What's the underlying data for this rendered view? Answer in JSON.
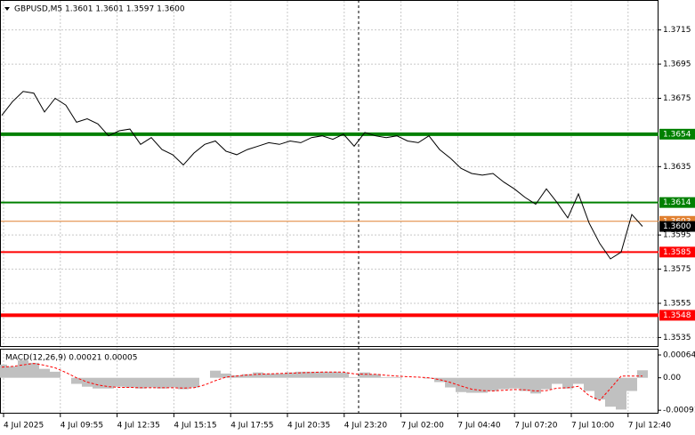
{
  "chart_data": [
    {
      "type": "line",
      "title": "GBPUSD,M5  1.3601 1.3601 1.3597 1.3600",
      "color": "#000000",
      "values": [
        1.3665,
        1.3673,
        1.3679,
        1.3678,
        1.3667,
        1.3675,
        1.3671,
        1.3661,
        1.3663,
        1.366,
        1.3653,
        1.3656,
        1.3657,
        1.3648,
        1.3652,
        1.3645,
        1.3642,
        1.3636,
        1.3643,
        1.3648,
        1.365,
        1.3644,
        1.3642,
        1.3645,
        1.3647,
        1.3649,
        1.3648,
        1.365,
        1.3649,
        1.3652,
        1.3653,
        1.3651,
        1.3654,
        1.3647,
        1.3655,
        1.3653,
        1.3652,
        1.3653,
        1.365,
        1.3649,
        1.3653,
        1.3645,
        1.364,
        1.3634,
        1.3631,
        1.363,
        1.3631,
        1.3626,
        1.3622,
        1.3617,
        1.3613,
        1.3622,
        1.3614,
        1.3605,
        1.3619,
        1.3602,
        1.359,
        1.3581,
        1.3585,
        1.3607,
        1.36
      ],
      "ylim": [
        1.353,
        1.3732
      ],
      "yticks": [
        1.3715,
        1.3695,
        1.3675,
        1.3635,
        1.3595,
        1.3575,
        1.3555,
        1.3535
      ],
      "levels": [
        {
          "value": 1.3654,
          "label": "1.3654",
          "color": "#008000",
          "width": 4
        },
        {
          "value": 1.3614,
          "label": "1.3614",
          "color": "#008000",
          "width": 2
        },
        {
          "value": 1.3603,
          "label": "1.3603",
          "color": "#e08030",
          "width": 1
        },
        {
          "value": 1.3585,
          "label": "1.3585",
          "color": "#ff0000",
          "width": 2
        },
        {
          "value": 1.3548,
          "label": "1.3548",
          "color": "#ff0000",
          "width": 4
        }
      ],
      "current": {
        "value": 1.36,
        "label": "1.3600"
      },
      "xtick_labels": [
        "4 Jul 2025",
        "4 Jul 09:55",
        "4 Jul 12:35",
        "4 Jul 15:15",
        "4 Jul 17:55",
        "4 Jul 20:35",
        "4 Jul 23:20",
        "7 Jul 02:00",
        "7 Jul 04:40",
        "7 Jul 07:20",
        "7 Jul 10:00",
        "7 Jul 12:40"
      ]
    },
    {
      "type": "macd",
      "title": "MACD(12,26,9) 0.00021 0.00005",
      "color": "#c0c0c0",
      "signal_color": "#ff0000",
      "histogram": [
        0.00037,
        0.00032,
        0.00049,
        0.00042,
        0.00025,
        0.00017,
        0,
        -0.00017,
        -0.00025,
        -0.0003,
        -0.0003,
        -0.00025,
        -0.00027,
        -0.0003,
        -0.00027,
        -0.0003,
        -0.00027,
        -0.00032,
        -0.00027,
        0,
        0.0002,
        0.00012,
        7e-05,
        0.0001,
        0.00015,
        0.00012,
        0.00012,
        0.00015,
        0.00017,
        0.00017,
        0.00017,
        0.00017,
        0.00015,
        2e-05,
        0.00015,
        0.0001,
        2e-05,
        2e-05,
        0,
        0,
        -2e-05,
        -0.00012,
        -0.00027,
        -0.0004,
        -0.00042,
        -0.00042,
        -0.00037,
        -0.00032,
        -0.0003,
        -0.00037,
        -0.00044,
        -0.00032,
        -0.00017,
        -0.0003,
        -0.00017,
        -0.00037,
        -0.00061,
        -0.00081,
        -0.00089,
        -0.00037,
        0.00021
      ],
      "signal": [
        0.0003,
        0.00032,
        0.00036,
        0.0004,
        0.00035,
        0.00028,
        0.00015,
        0,
        -0.00012,
        -0.0002,
        -0.00025,
        -0.00027,
        -0.00027,
        -0.00028,
        -0.00028,
        -0.00028,
        -0.00028,
        -0.00029,
        -0.00028,
        -0.0002,
        -8e-05,
        2e-05,
        5e-05,
        8e-05,
        0.0001,
        0.00011,
        0.00012,
        0.00013,
        0.00014,
        0.00015,
        0.00016,
        0.00016,
        0.00016,
        0.00011,
        0.0001,
        0.0001,
        7e-05,
        5e-05,
        3e-05,
        2e-05,
        0,
        -5e-05,
        -0.00013,
        -0.00023,
        -0.00032,
        -0.00036,
        -0.00037,
        -0.00035,
        -0.00033,
        -0.00034,
        -0.00037,
        -0.00036,
        -0.00029,
        -0.00028,
        -0.00024,
        -0.0005,
        -0.00063,
        -0.0003,
        5e-05,
        5e-05,
        5e-05
      ],
      "ylim": [
        -0.00098,
        0.00079
      ],
      "yticks": [
        0.00064,
        {
          "value": 0,
          "label": "0.00"
        },
        -0.00091
      ]
    }
  ]
}
